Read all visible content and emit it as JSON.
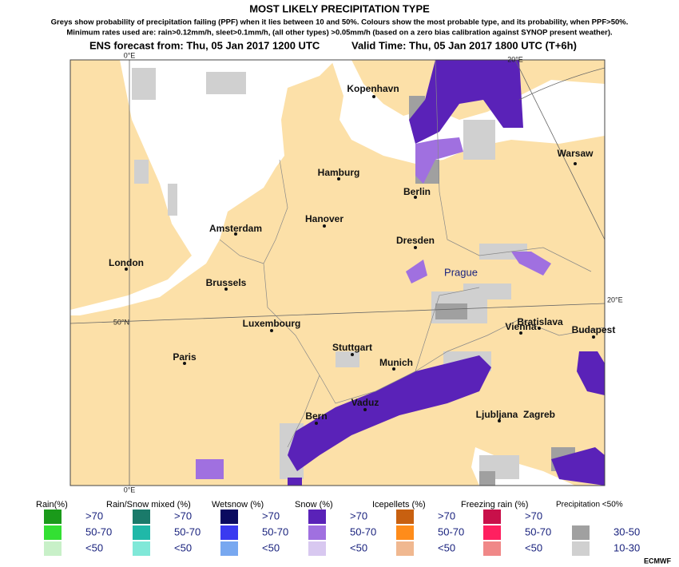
{
  "header": {
    "title": "MOST LIKELY PRECIPITATION TYPE",
    "subtitle": [
      "Greys show probability of precipitation failing (PPF) when it lies between 10 and 50%. Colours show the most probable type, and its probability, when PPF>50%.",
      "Minimum rates used are: rain>0.12mm/h, sleet>0.1mm/h, (all other types) >0.05mm/h (based on a zero bias calibration against SYNOP present weather)."
    ],
    "forecast": "ENS forecast from: Thu, 05 Jan 2017 1200 UTC",
    "valid": "Valid Time: Thu, 05 Jan 2017 1800 UTC (T+6h)"
  },
  "map": {
    "grid_labels": [
      "0°E",
      "20°E",
      "20°E",
      "50°N",
      "0°E"
    ],
    "cities": [
      "Kopenhavn",
      "Warsaw",
      "Hamburg",
      "Berlin",
      "Hanover",
      "Amsterdam",
      "Dresden",
      "London",
      "Prague",
      "Brussels",
      "Luxembourg",
      "Bratislava",
      "Vienna",
      "Budapest",
      "Paris",
      "Stuttgart",
      "Munich",
      "Vaduz",
      "Bern",
      "Ljubljana",
      "Zagreb"
    ]
  },
  "legend": {
    "groups": [
      {
        "title": "Rain(%)",
        "items": [
          {
            "label": ">70",
            "color": "#1a9a1a"
          },
          {
            "label": "50-70",
            "color": "#33e033"
          },
          {
            "label": "<50",
            "color": "#c8f0c8"
          }
        ]
      },
      {
        "title": "Rain/Snow mixed (%)",
        "items": [
          {
            "label": ">70",
            "color": "#1a7a6a"
          },
          {
            "label": "50-70",
            "color": "#20b8a8"
          },
          {
            "label": "<50",
            "color": "#80e8d8"
          }
        ]
      },
      {
        "title": "Wetsnow (%)",
        "items": [
          {
            "label": ">70",
            "color": "#0a0a60"
          },
          {
            "label": "50-70",
            "color": "#3a3af0"
          },
          {
            "label": "<50",
            "color": "#78a8f0"
          }
        ]
      },
      {
        "title": "Snow (%)",
        "items": [
          {
            "label": ">70",
            "color": "#5a22b8"
          },
          {
            "label": "50-70",
            "color": "#a070e0"
          },
          {
            "label": "<50",
            "color": "#d8c8f0"
          }
        ]
      },
      {
        "title": "Icepellets (%)",
        "items": [
          {
            "label": ">70",
            "color": "#c86010"
          },
          {
            "label": "50-70",
            "color": "#ff8c1a"
          },
          {
            "label": "<50",
            "color": "#f0b890"
          }
        ]
      },
      {
        "title": "Freezing rain (%)",
        "items": [
          {
            "label": ">70",
            "color": "#c8104a"
          },
          {
            "label": "50-70",
            "color": "#ff2060"
          },
          {
            "label": "<50",
            "color": "#f08888"
          }
        ]
      },
      {
        "title": "Precipitation <50%",
        "items": [
          {
            "label": "30-50",
            "color": "#a0a0a0"
          },
          {
            "label": "10-30",
            "color": "#d0d0d0"
          }
        ]
      }
    ]
  },
  "footer": "ECMWF"
}
